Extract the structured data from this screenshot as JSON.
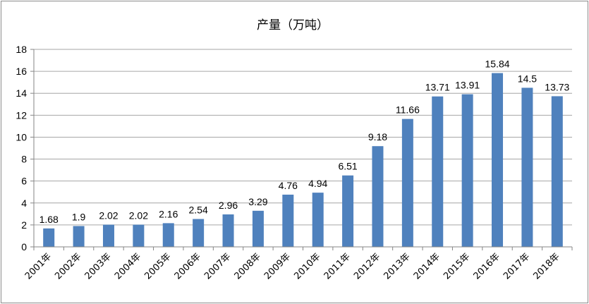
{
  "chart_data": {
    "type": "bar",
    "title": "产量（万吨）",
    "categories": [
      "2001年",
      "2002年",
      "2003年",
      "2004年",
      "2005年",
      "2006年",
      "2007年",
      "2008年",
      "2009年",
      "2010年",
      "2011年",
      "2012年",
      "2013年",
      "2014年",
      "2015年",
      "2016年",
      "2017年",
      "2018年"
    ],
    "values": [
      1.68,
      1.9,
      2.02,
      2.02,
      2.16,
      2.54,
      2.96,
      3.29,
      4.76,
      4.94,
      6.51,
      9.18,
      11.66,
      13.71,
      13.91,
      15.84,
      14.5,
      13.73
    ],
    "data_labels": [
      "1.68",
      "1.9",
      "2.02",
      "2.02",
      "2.16",
      "2.54",
      "2.96",
      "3.29",
      "4.76",
      "4.94",
      "6.51",
      "9.18",
      "11.66",
      "13.71",
      "13.91",
      "15.84",
      "14.5",
      "13.73"
    ],
    "yticks": [
      "0",
      "2",
      "4",
      "6",
      "8",
      "10",
      "12",
      "14",
      "16",
      "18"
    ],
    "ylim": [
      0,
      18
    ],
    "grid": true,
    "bar_color": "#4f81bd",
    "grid_color": "#a6a6a6",
    "legend": "none"
  }
}
